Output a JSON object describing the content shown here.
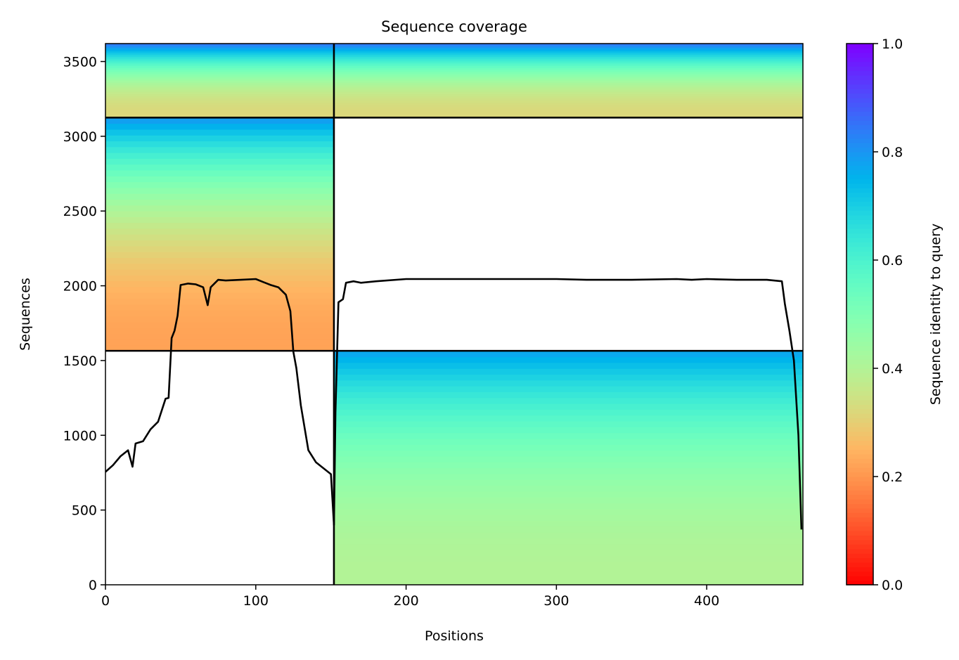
{
  "chart_data": {
    "type": "heatmap",
    "title": "Sequence coverage",
    "xlabel": "Positions",
    "ylabel": "Sequences",
    "xlim": [
      0,
      464
    ],
    "ylim": [
      0,
      3620
    ],
    "xticks": [
      0,
      100,
      200,
      300,
      400
    ],
    "yticks": [
      0,
      500,
      1000,
      1500,
      2000,
      2500,
      3000,
      3500
    ],
    "grid": false,
    "colormap": "rainbow_r",
    "colorbar": {
      "label": "Sequence identity to query",
      "range": [
        0,
        1
      ],
      "ticks": [
        0.0,
        0.2,
        0.4,
        0.6,
        0.8,
        1.0
      ],
      "tick_labels": [
        "0.0",
        "0.2",
        "0.4",
        "0.6",
        "0.8",
        "1.0"
      ]
    },
    "chain_boundary_x": 152,
    "block_boundaries_y": [
      1565,
      3125
    ],
    "blocks": [
      {
        "x": [
          152,
          464
        ],
        "y": [
          0,
          1565
        ],
        "identity_bottom": 0.4,
        "identity_top": 0.78
      },
      {
        "x": [
          0,
          152
        ],
        "y": [
          1565,
          3125
        ],
        "identity_bottom": 0.22,
        "identity_top": 0.8
      },
      {
        "x": [
          0,
          464
        ],
        "y": [
          3125,
          3620
        ],
        "identity_bottom": 0.32,
        "identity_top": 0.85
      }
    ],
    "coverage": {
      "x": [
        0,
        5,
        10,
        15,
        18,
        20,
        25,
        30,
        35,
        40,
        42,
        44,
        46,
        48,
        50,
        55,
        60,
        65,
        68,
        70,
        75,
        80,
        90,
        100,
        105,
        110,
        115,
        120,
        123,
        125,
        127,
        130,
        135,
        140,
        145,
        150,
        152,
        153,
        155,
        158,
        160,
        165,
        170,
        180,
        200,
        250,
        300,
        320,
        350,
        380,
        390,
        400,
        420,
        440,
        450,
        452,
        455,
        458,
        461,
        463
      ],
      "y": [
        755,
        800,
        860,
        900,
        790,
        945,
        960,
        1040,
        1090,
        1245,
        1250,
        1650,
        1700,
        1800,
        2005,
        2015,
        2010,
        1990,
        1870,
        1990,
        2040,
        2035,
        2040,
        2045,
        2025,
        2005,
        1990,
        1940,
        1830,
        1560,
        1450,
        1200,
        900,
        820,
        780,
        740,
        400,
        1150,
        1890,
        1910,
        2020,
        2030,
        2020,
        2030,
        2045,
        2045,
        2045,
        2040,
        2040,
        2045,
        2040,
        2045,
        2040,
        2040,
        2030,
        1880,
        1700,
        1500,
        1000,
        370
      ]
    }
  }
}
